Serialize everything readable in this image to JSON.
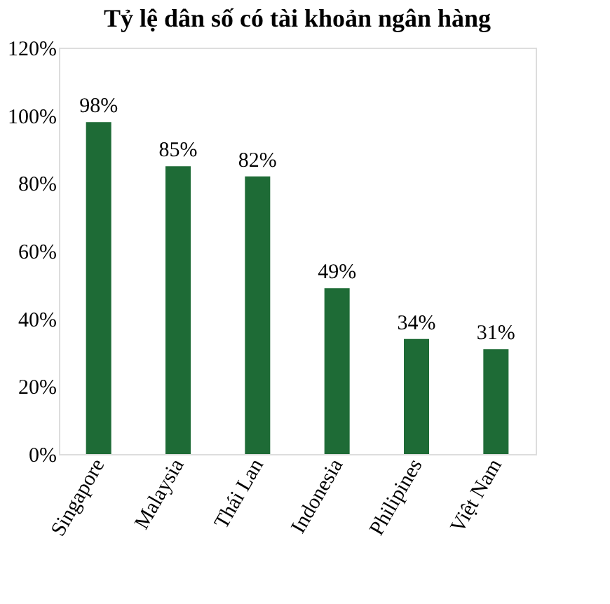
{
  "chart_data": {
    "type": "bar",
    "title": "Tỷ lệ dân số có tài khoản ngân hàng",
    "categories": [
      "Singapore",
      "Malaysia",
      "Thái Lan",
      "Indonesia",
      "Philipines",
      "Việt Nam"
    ],
    "values": [
      98,
      85,
      82,
      49,
      34,
      31
    ],
    "value_labels": [
      "98%",
      "85%",
      "82%",
      "49%",
      "34%",
      "31%"
    ],
    "color": "#1e6b36",
    "ylim": [
      0,
      120
    ],
    "yticks": [
      {
        "value": 0,
        "label": "0%"
      },
      {
        "value": 20,
        "label": "20%"
      },
      {
        "value": 40,
        "label": "40%"
      },
      {
        "value": 60,
        "label": "60%"
      },
      {
        "value": 80,
        "label": "80%"
      },
      {
        "value": 100,
        "label": "100%"
      },
      {
        "value": 120,
        "label": "120%"
      }
    ],
    "grid": false
  }
}
